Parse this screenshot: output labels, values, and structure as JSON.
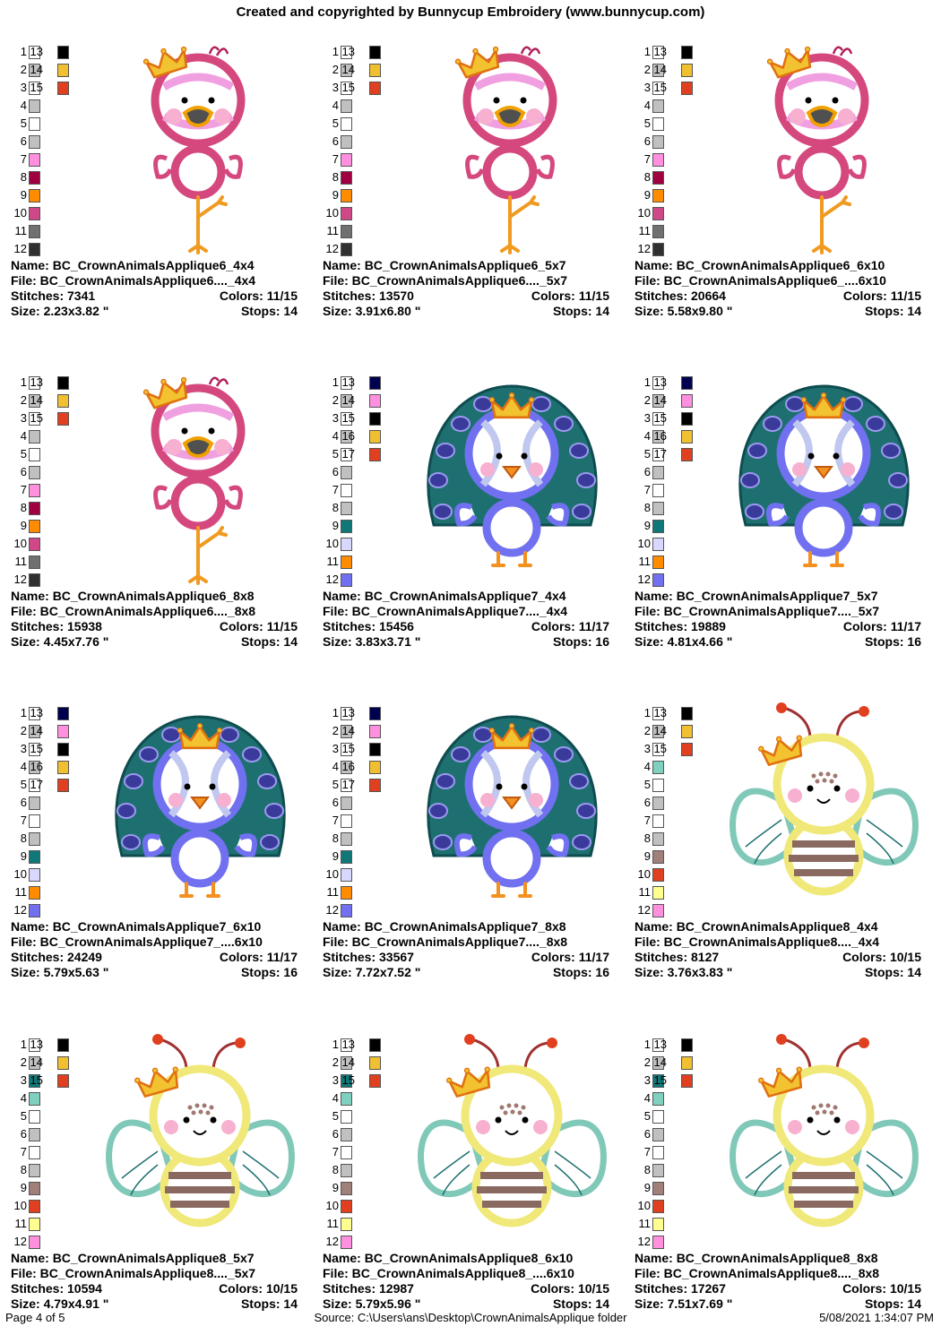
{
  "header": {
    "title": "Created and copyrighted by Bunnycup Embroidery (www.bunnycup.com)"
  },
  "labels": {
    "name": "Name:",
    "file": "File:",
    "stitches": "Stitches:",
    "size": "Size:",
    "colors": "Colors:",
    "stops": "Stops:"
  },
  "designs": [
    {
      "name": "BC_CrownAnimalsApplique6_4x4",
      "file": "BC_CrownAnimalsApplique6...._4x4",
      "stitches": "7341",
      "colors": "11/15",
      "size": "2.23x3.82 \"",
      "stops": "14",
      "icon": "flamingo-icon",
      "palette": [
        [
          "1",
          "#ffffff",
          "13",
          "#000000"
        ],
        [
          "2",
          "#c0c0c0",
          "14",
          "#f0c030"
        ],
        [
          "3",
          "#ffffff",
          "15",
          "#e04020"
        ],
        [
          "4",
          "#c0c0c0"
        ],
        [
          "5",
          "#ffffff"
        ],
        [
          "6",
          "#c0c0c0"
        ],
        [
          "7",
          "#ff90e0"
        ],
        [
          "8",
          "#a00040"
        ],
        [
          "9",
          "#ff8c00"
        ],
        [
          "10",
          "#d04888"
        ],
        [
          "11",
          "#707070"
        ],
        [
          "12",
          "#303030"
        ]
      ]
    },
    {
      "name": "BC_CrownAnimalsApplique6_5x7",
      "file": "BC_CrownAnimalsApplique6...._5x7",
      "stitches": "13570",
      "colors": "11/15",
      "size": "3.91x6.80 \"",
      "stops": "14",
      "icon": "flamingo-icon",
      "palette": [
        [
          "1",
          "#ffffff",
          "13",
          "#000000"
        ],
        [
          "2",
          "#c0c0c0",
          "14",
          "#f0c030"
        ],
        [
          "3",
          "#ffffff",
          "15",
          "#e04020"
        ],
        [
          "4",
          "#c0c0c0"
        ],
        [
          "5",
          "#ffffff"
        ],
        [
          "6",
          "#c0c0c0"
        ],
        [
          "7",
          "#ff90e0"
        ],
        [
          "8",
          "#a00040"
        ],
        [
          "9",
          "#ff8c00"
        ],
        [
          "10",
          "#d04888"
        ],
        [
          "11",
          "#707070"
        ],
        [
          "12",
          "#303030"
        ]
      ]
    },
    {
      "name": "BC_CrownAnimalsApplique6_6x10",
      "file": "BC_CrownAnimalsApplique6_....6x10",
      "stitches": "20664",
      "colors": "11/15",
      "size": "5.58x9.80 \"",
      "stops": "14",
      "icon": "flamingo-icon",
      "palette": [
        [
          "1",
          "#ffffff",
          "13",
          "#000000"
        ],
        [
          "2",
          "#c0c0c0",
          "14",
          "#f0c030"
        ],
        [
          "3",
          "#ffffff",
          "15",
          "#e04020"
        ],
        [
          "4",
          "#c0c0c0"
        ],
        [
          "5",
          "#ffffff"
        ],
        [
          "6",
          "#c0c0c0"
        ],
        [
          "7",
          "#ff90e0"
        ],
        [
          "8",
          "#a00040"
        ],
        [
          "9",
          "#ff8c00"
        ],
        [
          "10",
          "#d04888"
        ],
        [
          "11",
          "#707070"
        ],
        [
          "12",
          "#303030"
        ]
      ]
    },
    {
      "name": "BC_CrownAnimalsApplique6_8x8",
      "file": "BC_CrownAnimalsApplique6...._8x8",
      "stitches": "15938",
      "colors": "11/15",
      "size": "4.45x7.76 \"",
      "stops": "14",
      "icon": "flamingo-icon",
      "palette": [
        [
          "1",
          "#ffffff",
          "13",
          "#000000"
        ],
        [
          "2",
          "#c0c0c0",
          "14",
          "#f0c030"
        ],
        [
          "3",
          "#ffffff",
          "15",
          "#e04020"
        ],
        [
          "4",
          "#c0c0c0"
        ],
        [
          "5",
          "#ffffff"
        ],
        [
          "6",
          "#c0c0c0"
        ],
        [
          "7",
          "#ff90e0"
        ],
        [
          "8",
          "#a00040"
        ],
        [
          "9",
          "#ff8c00"
        ],
        [
          "10",
          "#d04888"
        ],
        [
          "11",
          "#707070"
        ],
        [
          "12",
          "#303030"
        ]
      ]
    },
    {
      "name": "BC_CrownAnimalsApplique7_4x4",
      "file": "BC_CrownAnimalsApplique7...._4x4",
      "stitches": "15456",
      "colors": "11/17",
      "size": "3.83x3.71 \"",
      "stops": "16",
      "icon": "peacock-icon",
      "palette": [
        [
          "1",
          "#ffffff",
          "13",
          "#000050"
        ],
        [
          "2",
          "#c0c0c0",
          "14",
          "#ff90e0"
        ],
        [
          "3",
          "#ffffff",
          "15",
          "#000000"
        ],
        [
          "4",
          "#c0c0c0",
          "16",
          "#f0c030"
        ],
        [
          "5",
          "#ffffff",
          "17",
          "#e04020"
        ],
        [
          "6",
          "#c0c0c0"
        ],
        [
          "7",
          "#ffffff"
        ],
        [
          "8",
          "#c0c0c0"
        ],
        [
          "9",
          "#107878"
        ],
        [
          "10",
          "#d8d8ff"
        ],
        [
          "11",
          "#ff8c00"
        ],
        [
          "12",
          "#7070f0"
        ]
      ]
    },
    {
      "name": "BC_CrownAnimalsApplique7_5x7",
      "file": "BC_CrownAnimalsApplique7...._5x7",
      "stitches": "19889",
      "colors": "11/17",
      "size": "4.81x4.66 \"",
      "stops": "16",
      "icon": "peacock-icon",
      "palette": [
        [
          "1",
          "#ffffff",
          "13",
          "#000050"
        ],
        [
          "2",
          "#c0c0c0",
          "14",
          "#ff90e0"
        ],
        [
          "3",
          "#ffffff",
          "15",
          "#000000"
        ],
        [
          "4",
          "#c0c0c0",
          "16",
          "#f0c030"
        ],
        [
          "5",
          "#ffffff",
          "17",
          "#e04020"
        ],
        [
          "6",
          "#c0c0c0"
        ],
        [
          "7",
          "#ffffff"
        ],
        [
          "8",
          "#c0c0c0"
        ],
        [
          "9",
          "#107878"
        ],
        [
          "10",
          "#d8d8ff"
        ],
        [
          "11",
          "#ff8c00"
        ],
        [
          "12",
          "#7070f0"
        ]
      ]
    },
    {
      "name": "BC_CrownAnimalsApplique7_6x10",
      "file": "BC_CrownAnimalsApplique7_....6x10",
      "stitches": "24249",
      "colors": "11/17",
      "size": "5.79x5.63 \"",
      "stops": "16",
      "icon": "peacock-icon",
      "palette": [
        [
          "1",
          "#ffffff",
          "13",
          "#000050"
        ],
        [
          "2",
          "#c0c0c0",
          "14",
          "#ff90e0"
        ],
        [
          "3",
          "#ffffff",
          "15",
          "#000000"
        ],
        [
          "4",
          "#c0c0c0",
          "16",
          "#f0c030"
        ],
        [
          "5",
          "#ffffff",
          "17",
          "#e04020"
        ],
        [
          "6",
          "#c0c0c0"
        ],
        [
          "7",
          "#ffffff"
        ],
        [
          "8",
          "#c0c0c0"
        ],
        [
          "9",
          "#107878"
        ],
        [
          "10",
          "#d8d8ff"
        ],
        [
          "11",
          "#ff8c00"
        ],
        [
          "12",
          "#7070f0"
        ]
      ]
    },
    {
      "name": "BC_CrownAnimalsApplique7_8x8",
      "file": "BC_CrownAnimalsApplique7...._8x8",
      "stitches": "33567",
      "colors": "11/17",
      "size": "7.72x7.52 \"",
      "stops": "16",
      "icon": "peacock-icon",
      "palette": [
        [
          "1",
          "#ffffff",
          "13",
          "#000050"
        ],
        [
          "2",
          "#c0c0c0",
          "14",
          "#ff90e0"
        ],
        [
          "3",
          "#ffffff",
          "15",
          "#000000"
        ],
        [
          "4",
          "#c0c0c0",
          "16",
          "#f0c030"
        ],
        [
          "5",
          "#ffffff",
          "17",
          "#e04020"
        ],
        [
          "6",
          "#c0c0c0"
        ],
        [
          "7",
          "#ffffff"
        ],
        [
          "8",
          "#c0c0c0"
        ],
        [
          "9",
          "#107878"
        ],
        [
          "10",
          "#d8d8ff"
        ],
        [
          "11",
          "#ff8c00"
        ],
        [
          "12",
          "#7070f0"
        ]
      ]
    },
    {
      "name": "BC_CrownAnimalsApplique8_4x4",
      "file": "BC_CrownAnimalsApplique8...._4x4",
      "stitches": "8127",
      "colors": "10/15",
      "size": "3.76x3.83 \"",
      "stops": "14",
      "icon": "bee-icon",
      "palette": [
        [
          "1",
          "#ffffff",
          "13",
          "#000000"
        ],
        [
          "2",
          "#c0c0c0",
          "14",
          "#f0c030"
        ],
        [
          "3",
          "#ffffff",
          "15",
          "#e04020"
        ],
        [
          "4",
          "#80d0c0"
        ],
        [
          "5",
          "#ffffff"
        ],
        [
          "6",
          "#c0c0c0"
        ],
        [
          "7",
          "#ffffff"
        ],
        [
          "8",
          "#c0c0c0"
        ],
        [
          "9",
          "#a08078"
        ],
        [
          "10",
          "#e04020"
        ],
        [
          "11",
          "#ffff90"
        ],
        [
          "12",
          "#ff90e0"
        ]
      ]
    },
    {
      "name": "BC_CrownAnimalsApplique8_5x7",
      "file": "BC_CrownAnimalsApplique8...._5x7",
      "stitches": "10594",
      "colors": "10/15",
      "size": "4.79x4.91 \"",
      "stops": "14",
      "icon": "bee-icon",
      "palette": [
        [
          "1",
          "#ffffff",
          "13",
          "#000000"
        ],
        [
          "2",
          "#c0c0c0",
          "14",
          "#f0c030"
        ],
        [
          "3",
          "#107878",
          "15",
          "#e04020"
        ],
        [
          "4",
          "#80d0c0"
        ],
        [
          "5",
          "#ffffff"
        ],
        [
          "6",
          "#c0c0c0"
        ],
        [
          "7",
          "#ffffff"
        ],
        [
          "8",
          "#c0c0c0"
        ],
        [
          "9",
          "#a08078"
        ],
        [
          "10",
          "#e04020"
        ],
        [
          "11",
          "#ffff90"
        ],
        [
          "12",
          "#ff90e0"
        ]
      ]
    },
    {
      "name": "BC_CrownAnimalsApplique8_6x10",
      "file": "BC_CrownAnimalsApplique8_....6x10",
      "stitches": "12987",
      "colors": "10/15",
      "size": "5.79x5.96 \"",
      "stops": "14",
      "icon": "bee-icon",
      "palette": [
        [
          "1",
          "#ffffff",
          "13",
          "#000000"
        ],
        [
          "2",
          "#c0c0c0",
          "14",
          "#f0c030"
        ],
        [
          "3",
          "#107878",
          "15",
          "#e04020"
        ],
        [
          "4",
          "#80d0c0"
        ],
        [
          "5",
          "#ffffff"
        ],
        [
          "6",
          "#c0c0c0"
        ],
        [
          "7",
          "#ffffff"
        ],
        [
          "8",
          "#c0c0c0"
        ],
        [
          "9",
          "#a08078"
        ],
        [
          "10",
          "#e04020"
        ],
        [
          "11",
          "#ffff90"
        ],
        [
          "12",
          "#ff90e0"
        ]
      ]
    },
    {
      "name": "BC_CrownAnimalsApplique8_8x8",
      "file": "BC_CrownAnimalsApplique8...._8x8",
      "stitches": "17267",
      "colors": "10/15",
      "size": "7.51x7.69 \"",
      "stops": "14",
      "icon": "bee-icon",
      "palette": [
        [
          "1",
          "#ffffff",
          "13",
          "#000000"
        ],
        [
          "2",
          "#c0c0c0",
          "14",
          "#f0c030"
        ],
        [
          "3",
          "#107878",
          "15",
          "#e04020"
        ],
        [
          "4",
          "#80d0c0"
        ],
        [
          "5",
          "#ffffff"
        ],
        [
          "6",
          "#c0c0c0"
        ],
        [
          "7",
          "#ffffff"
        ],
        [
          "8",
          "#c0c0c0"
        ],
        [
          "9",
          "#a08078"
        ],
        [
          "10",
          "#e04020"
        ],
        [
          "11",
          "#ffff90"
        ],
        [
          "12",
          "#ff90e0"
        ]
      ]
    }
  ],
  "footer": {
    "page": "Page 4 of 5",
    "source": "Source: C:\\Users\\ans\\Desktop\\CrownAnimalsApplique folder",
    "date": "5/08/2021 1:34:07 PM"
  }
}
